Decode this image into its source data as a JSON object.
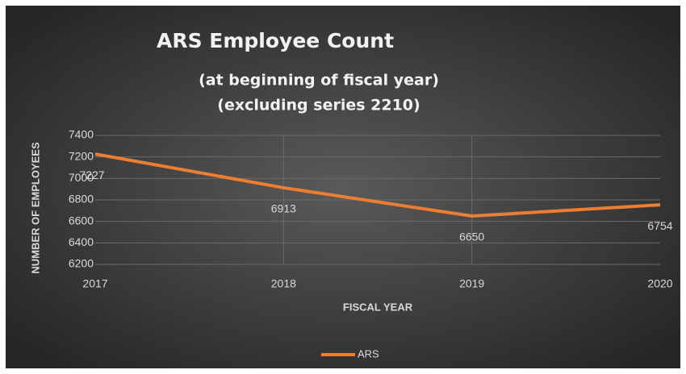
{
  "chart_data": {
    "type": "line",
    "title": "ARS Employee Count",
    "subtitle": [
      "(at beginning of fiscal year)",
      "(excluding series 2210)"
    ],
    "x_label": "FISCAL YEAR",
    "y_label": "NUMBER OF EMPLOYEES",
    "categories": [
      "2017",
      "2018",
      "2019",
      "2020"
    ],
    "series": [
      {
        "name": "ARS",
        "color": "#ed7d31",
        "values": [
          7227,
          6913,
          6650,
          6754
        ]
      }
    ],
    "ylim": [
      6200,
      7400
    ],
    "yticks": [
      6200,
      6400,
      6600,
      6800,
      7000,
      7200,
      7400
    ],
    "grid": true,
    "legend": "bottom"
  }
}
